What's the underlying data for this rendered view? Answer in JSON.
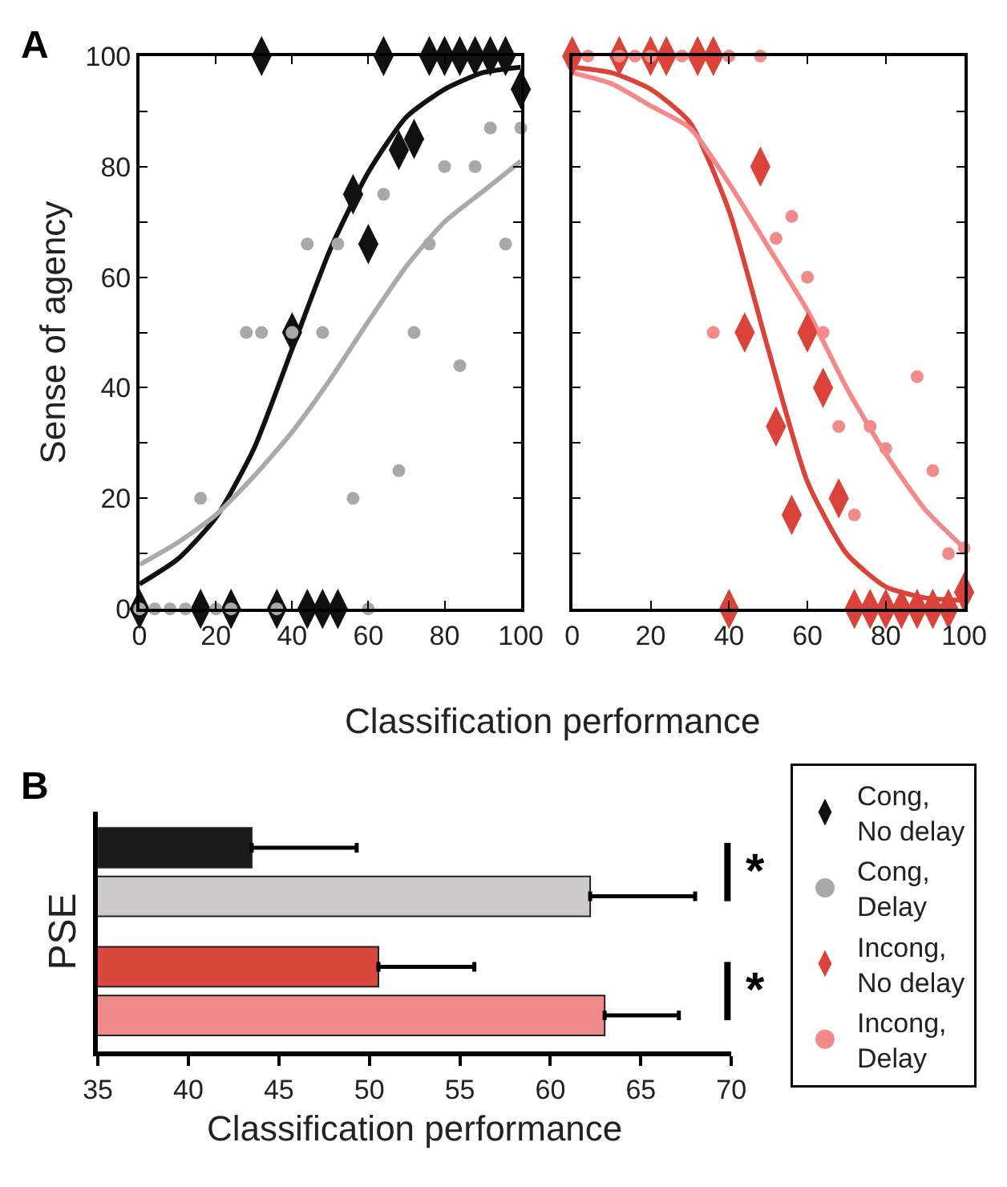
{
  "chart_data": [
    {
      "type": "scatter",
      "title": "A",
      "ylabel": "Sense of agency",
      "xlabel": "Classification performance",
      "xlim": [
        0,
        100
      ],
      "ylim": [
        0,
        100
      ],
      "xticks": [
        0,
        20,
        40,
        60,
        80,
        100
      ],
      "yticks": [
        0,
        {
          "value": 10,
          "label": null
        },
        20,
        {
          "value": 30,
          "label": null
        },
        40,
        {
          "value": 50,
          "label": null
        },
        60,
        {
          "value": 70,
          "label": null
        },
        80,
        {
          "value": 90,
          "label": null
        },
        100
      ],
      "legend": "bottom right",
      "series": [
        {
          "type": "line",
          "color": "#111111",
          "marker": "none",
          "x": [
            0,
            10,
            20,
            30,
            40,
            50,
            60,
            70,
            80,
            90,
            100
          ],
          "values": [
            4.5,
            9,
            16.5,
            29,
            47,
            65,
            79,
            89,
            94,
            97,
            98
          ]
        },
        {
          "type": "line",
          "color": "#aaaaaa",
          "marker": "none",
          "x": [
            0,
            10,
            20,
            30,
            40,
            50,
            60,
            70,
            80,
            90,
            100
          ],
          "values": [
            8,
            12,
            17,
            24,
            32,
            41.5,
            52,
            62,
            70,
            75.5,
            81
          ]
        },
        {
          "type": "scatter",
          "name": "Cong, No delay",
          "color": "#111111",
          "marker": "diamond",
          "x": [
            32,
            64,
            76,
            80,
            84,
            88,
            92,
            96,
            100,
            68,
            72,
            56,
            60,
            40,
            0,
            16,
            24,
            36,
            44,
            48,
            52
          ],
          "values": [
            100,
            100,
            100,
            100,
            100,
            100,
            100,
            100,
            94,
            83,
            85,
            75,
            66,
            50,
            0,
            0,
            0,
            0,
            0,
            0,
            0
          ]
        },
        {
          "type": "scatter",
          "name": "Cong, Delay",
          "color": "#a8a8a8",
          "marker": "circle",
          "x": [
            0,
            4,
            8,
            12,
            20,
            24,
            36,
            60,
            16,
            28,
            32,
            44,
            52,
            48,
            56,
            64,
            68,
            72,
            76,
            80,
            84,
            88,
            92,
            96,
            100,
            40
          ],
          "values": [
            0,
            0,
            0,
            0,
            0,
            0,
            0,
            0,
            20,
            50,
            50,
            66,
            66,
            50,
            20,
            75,
            25,
            50,
            66,
            80,
            44,
            80,
            87,
            66,
            87,
            50
          ]
        }
      ]
    },
    {
      "type": "scatter",
      "xlim": [
        0,
        100
      ],
      "ylim": [
        0,
        100
      ],
      "xticks": [
        0,
        20,
        40,
        60,
        80,
        100
      ],
      "yticks": [
        0,
        {
          "value": 10,
          "label": null
        },
        20,
        {
          "value": 30,
          "label": null
        },
        40,
        {
          "value": 50,
          "label": null
        },
        60,
        {
          "value": 70,
          "label": null
        },
        80,
        {
          "value": 90,
          "label": null
        },
        100
      ],
      "tick_labels": "x",
      "legend": "bottom right",
      "series": [
        {
          "type": "line",
          "color": "#d9433a",
          "marker": "none",
          "x": [
            0,
            10,
            20,
            30,
            40,
            50,
            60,
            70,
            80,
            90,
            100
          ],
          "values": [
            98,
            97,
            94,
            88,
            72,
            47,
            23,
            10,
            4,
            2,
            1.5
          ]
        },
        {
          "type": "line",
          "color": "#f28a8a",
          "marker": "none",
          "x": [
            0,
            10,
            20,
            30,
            40,
            50,
            60,
            70,
            80,
            90,
            100
          ],
          "values": [
            97,
            95,
            91,
            87,
            77,
            65.5,
            54,
            40,
            28,
            18,
            11
          ]
        },
        {
          "type": "scatter",
          "name": "Incong, No delay",
          "color": "#d9433a",
          "marker": "diamond",
          "x": [
            0,
            12,
            20,
            24,
            32,
            36,
            48,
            44,
            60,
            64,
            52,
            56,
            68,
            100,
            40,
            72,
            76,
            80,
            84,
            88,
            92,
            96
          ],
          "values": [
            100,
            100,
            100,
            100,
            100,
            100,
            80,
            50,
            50,
            40,
            33,
            17,
            20,
            3,
            0,
            0,
            0,
            0,
            0,
            0,
            0,
            0
          ]
        },
        {
          "type": "scatter",
          "name": "Incong, Delay",
          "color": "#f28a8a",
          "marker": "circle",
          "x": [
            4,
            12,
            16,
            20,
            28,
            40,
            48,
            36,
            56,
            52,
            60,
            64,
            68,
            76,
            80,
            88,
            72,
            92,
            96,
            100
          ],
          "values": [
            100,
            100,
            100,
            100,
            100,
            100,
            100,
            50,
            71,
            67,
            60,
            50,
            33,
            33,
            29,
            42,
            17,
            25,
            10,
            11
          ]
        }
      ]
    },
    {
      "type": "bar",
      "title": "B",
      "orientation": "horizontal",
      "ylabel": "PSE",
      "xlabel": "Classification performance",
      "categories": [
        null,
        null,
        null,
        null
      ],
      "values": [
        43.5,
        62.2,
        50.5,
        63
      ],
      "colors": [
        "#1a1a1a",
        "#cccaca",
        "#d9473e",
        "#f08a8a"
      ],
      "errors": [
        [
          43.5,
          49.3
        ],
        [
          62.2,
          68
        ],
        [
          50.5,
          55.8
        ],
        [
          63,
          67.1
        ]
      ],
      "xlim": [
        35,
        70
      ],
      "xticks": [
        35,
        40,
        45,
        50,
        55,
        60,
        65,
        70
      ],
      "annotations": [
        "*",
        "*"
      ]
    }
  ]
}
